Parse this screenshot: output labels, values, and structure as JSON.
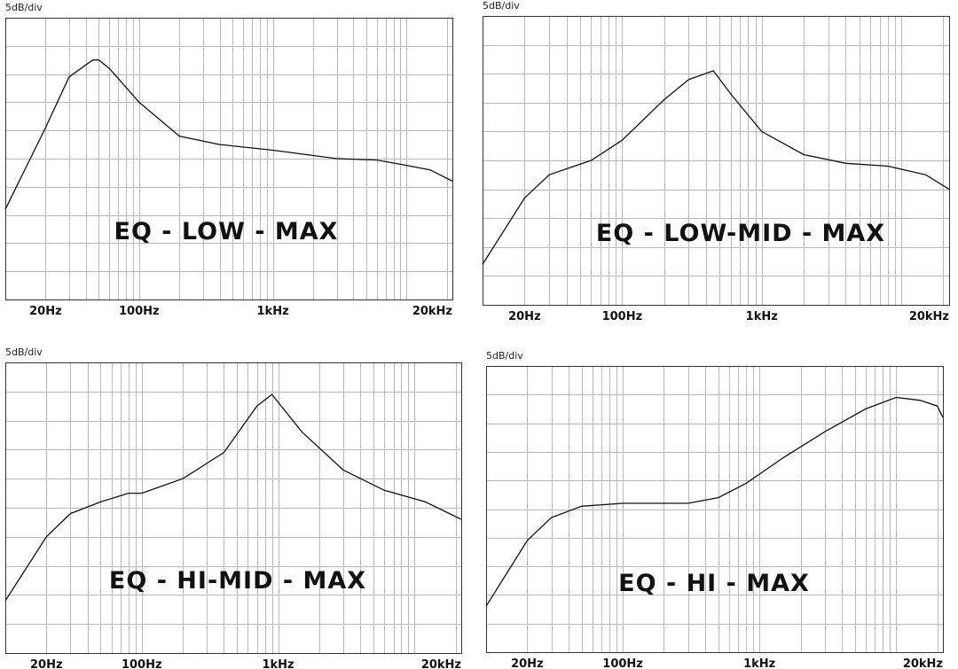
{
  "chart_data": [
    {
      "type": "line",
      "title": "EQ - LOW - MAX",
      "ylabel": "5dB/div",
      "xscale": "log",
      "xlim": [
        10,
        22000
      ],
      "y_divisions": 10,
      "grid": true,
      "x_tick_labels": [
        {
          "value": 20,
          "label": "20Hz"
        },
        {
          "value": 100,
          "label": "100Hz"
        },
        {
          "value": 1000,
          "label": "1kHz"
        },
        {
          "value": 20000,
          "label": "20kHz"
        }
      ],
      "series": [
        {
          "x": [
            10,
            20,
            30,
            45,
            50,
            60,
            100,
            200,
            400,
            1000,
            3000,
            6000,
            9000,
            15000,
            22000
          ],
          "y": [
            3.2,
            6.1,
            7.9,
            8.5,
            8.5,
            8.2,
            7.0,
            5.8,
            5.5,
            5.3,
            5.0,
            4.95,
            4.8,
            4.6,
            4.2
          ]
        }
      ]
    },
    {
      "type": "line",
      "title": "EQ - LOW-MID - MAX",
      "ylabel": "5dB/div",
      "xscale": "log",
      "xlim": [
        10,
        22000
      ],
      "y_divisions": 10,
      "grid": true,
      "x_tick_labels": [
        {
          "value": 20,
          "label": "20Hz"
        },
        {
          "value": 100,
          "label": "100Hz"
        },
        {
          "value": 1000,
          "label": "1kHz"
        },
        {
          "value": 20000,
          "label": "20kHz"
        }
      ],
      "series": [
        {
          "x": [
            10,
            20,
            30,
            60,
            100,
            200,
            300,
            450,
            600,
            1000,
            2000,
            4000,
            8000,
            15000,
            22000
          ],
          "y": [
            1.4,
            3.7,
            4.5,
            5.0,
            5.7,
            7.1,
            7.8,
            8.1,
            7.3,
            6.0,
            5.2,
            4.9,
            4.8,
            4.5,
            4.0
          ]
        }
      ]
    },
    {
      "type": "line",
      "title": "EQ - HI-MID - MAX",
      "ylabel": "5dB/div",
      "xscale": "log",
      "xlim": [
        10,
        22000
      ],
      "y_divisions": 10,
      "grid": true,
      "x_tick_labels": [
        {
          "value": 20,
          "label": "20Hz"
        },
        {
          "value": 100,
          "label": "100Hz"
        },
        {
          "value": 1000,
          "label": "1kHz"
        },
        {
          "value": 20000,
          "label": "20kHz"
        }
      ],
      "series": [
        {
          "x": [
            10,
            20,
            30,
            50,
            80,
            100,
            200,
            400,
            700,
            900,
            1500,
            3000,
            6000,
            12000,
            22000
          ],
          "y": [
            1.8,
            4.0,
            4.8,
            5.2,
            5.5,
            5.5,
            6.0,
            6.9,
            8.5,
            8.9,
            7.6,
            6.3,
            5.6,
            5.2,
            4.6
          ]
        }
      ]
    },
    {
      "type": "line",
      "title": "EQ - HI - MAX",
      "ylabel": "5dB/div",
      "xscale": "log",
      "xlim": [
        10,
        22000
      ],
      "y_divisions": 10,
      "grid": true,
      "x_tick_labels": [
        {
          "value": 20,
          "label": "20Hz"
        },
        {
          "value": 100,
          "label": "100Hz"
        },
        {
          "value": 1000,
          "label": "1kHz"
        },
        {
          "value": 20000,
          "label": "20kHz"
        }
      ],
      "series": [
        {
          "x": [
            10,
            20,
            30,
            50,
            100,
            300,
            500,
            800,
            1500,
            3000,
            6000,
            10000,
            15000,
            20000,
            22000
          ],
          "y": [
            1.6,
            3.9,
            4.7,
            5.1,
            5.2,
            5.2,
            5.4,
            5.9,
            6.8,
            7.7,
            8.5,
            8.9,
            8.8,
            8.6,
            8.2
          ]
        }
      ]
    }
  ]
}
